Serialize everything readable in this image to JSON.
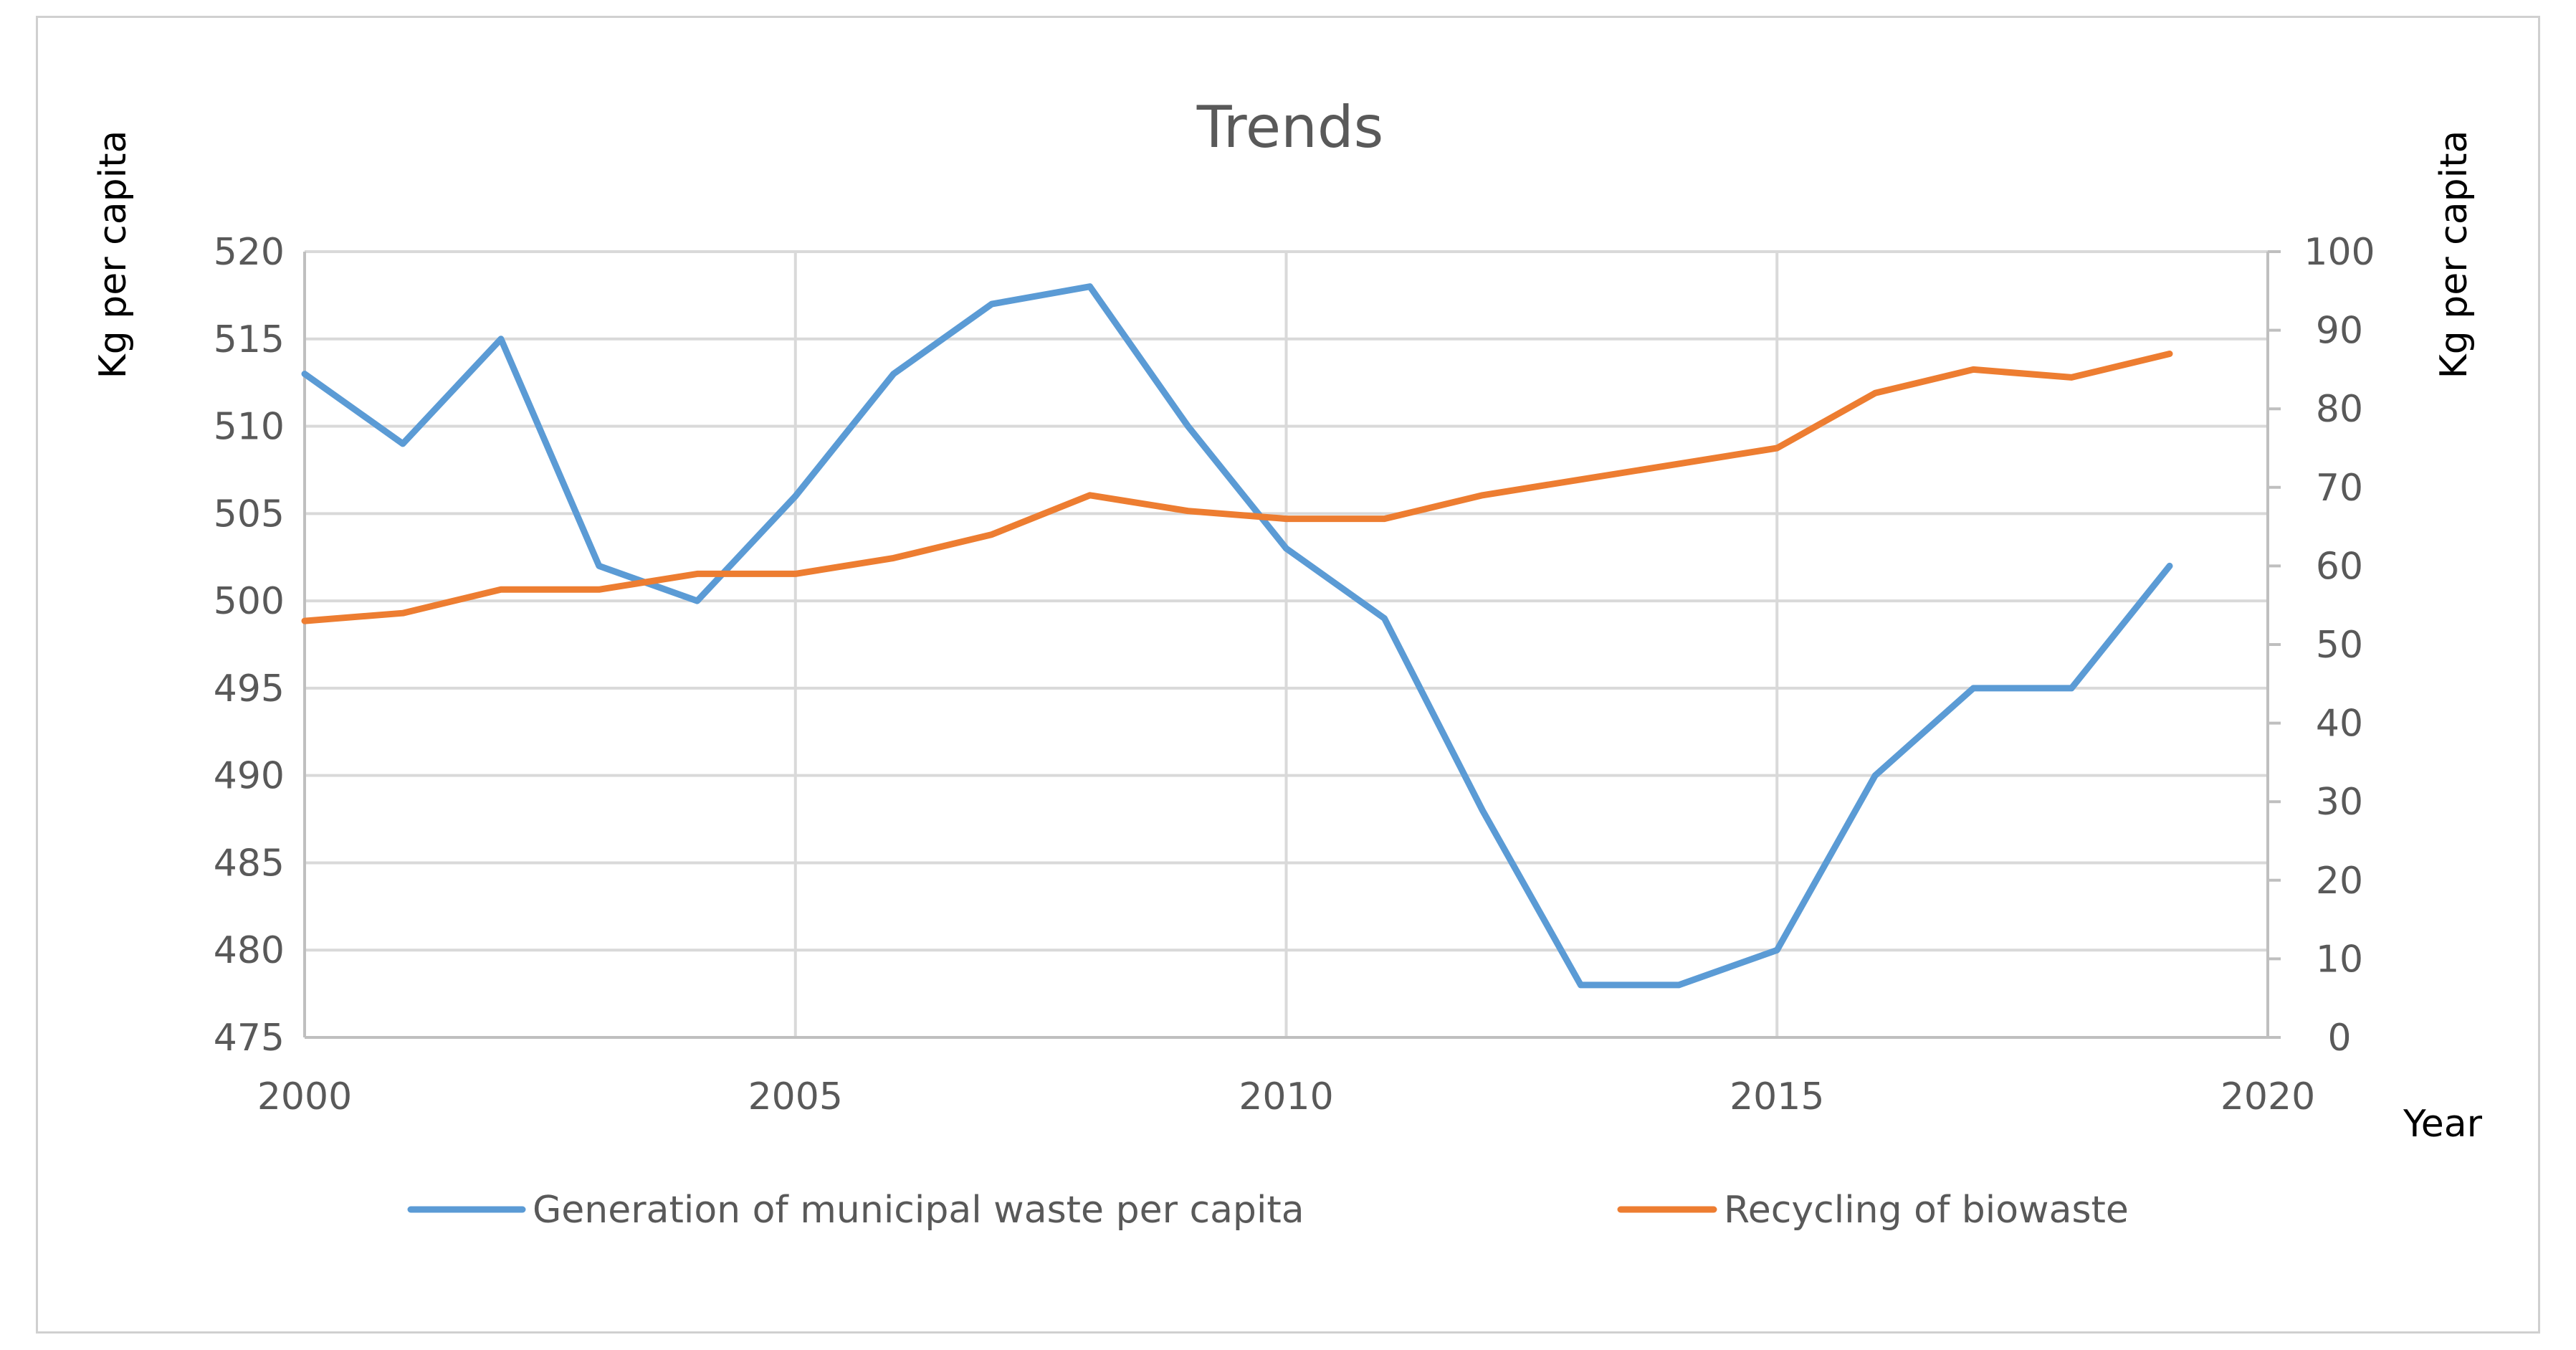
{
  "chart_data": {
    "type": "line",
    "title": "Trends",
    "x": [
      2000,
      2001,
      2002,
      2003,
      2004,
      2005,
      2006,
      2007,
      2008,
      2009,
      2010,
      2011,
      2012,
      2013,
      2014,
      2015,
      2016,
      2017,
      2018,
      2019
    ],
    "xlabel": "Year",
    "xlim": [
      2000,
      2020
    ],
    "xticks": [
      "2000",
      "2005",
      "2010",
      "2015",
      "2020"
    ],
    "ylabel_left": "Kg per capita",
    "ylabel_right": "Kg per capita",
    "ylim_left": [
      475,
      520
    ],
    "ylim_right": [
      0,
      100
    ],
    "yticks_left": [
      "475",
      "480",
      "485",
      "490",
      "495",
      "500",
      "505",
      "510",
      "515",
      "520"
    ],
    "yticks_right": [
      "0",
      "10",
      "20",
      "30",
      "40",
      "50",
      "60",
      "70",
      "80",
      "90",
      "100"
    ],
    "grid": true,
    "legend_position": "bottom",
    "series": [
      {
        "name": "Generation of municipal waste per capita",
        "axis": "left",
        "color": "#5B9BD5",
        "values": [
          513,
          509,
          515,
          502,
          500,
          506,
          513,
          517,
          518,
          510,
          503,
          499,
          488,
          478,
          478,
          480,
          490,
          495,
          495,
          502
        ]
      },
      {
        "name": "Recycling of biowaste",
        "axis": "right",
        "color": "#ED7D31",
        "values": [
          53,
          54,
          57,
          57,
          59,
          59,
          61,
          64,
          69,
          67,
          66,
          66,
          69,
          71,
          73,
          75,
          82,
          85,
          84,
          87
        ]
      }
    ]
  }
}
